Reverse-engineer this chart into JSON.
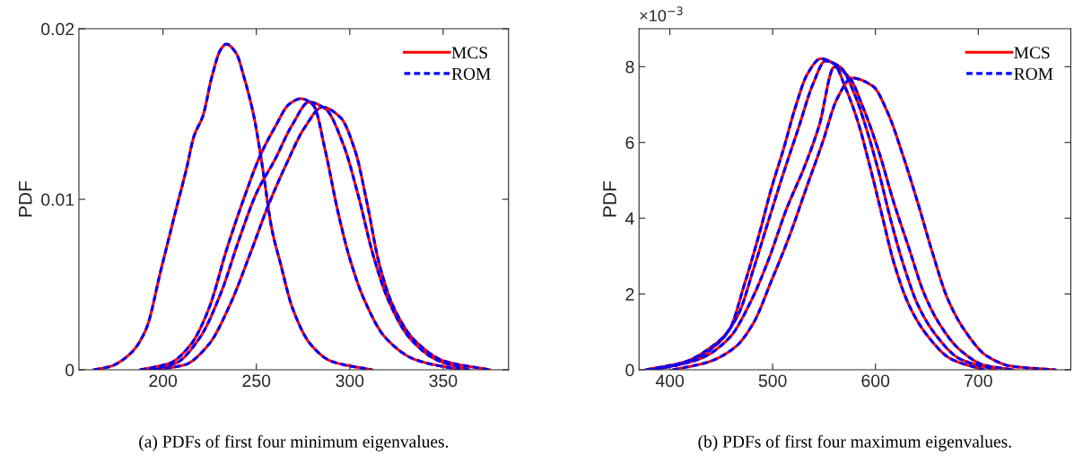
{
  "chart_data": [
    {
      "type": "line",
      "ylabel": "PDF",
      "xlim": [
        155,
        385
      ],
      "xticks": [
        200,
        250,
        300,
        350
      ],
      "ylim": [
        0,
        0.02
      ],
      "yticks": [
        0,
        0.01,
        0.02
      ],
      "legend": "top right",
      "grid": false,
      "annotations": [
        "(a) PDFs of first four minimum eigenvalues."
      ],
      "series": [
        {
          "name": "MCS",
          "color": "#ff0000",
          "line_style": "solid",
          "x": [
            163,
            171.8,
            183,
            191,
            199,
            207,
            212.6,
            216.6,
            221.4,
            226.2,
            231,
            233.9,
            239,
            243.8,
            248.6,
            253.4,
            258.2,
            263,
            269.4,
            279,
            290.2,
            311.8
          ],
          "values": [
            0,
            0.0002,
            0.001,
            0.0024,
            0.0059,
            0.0094,
            0.0118,
            0.0137,
            0.0149,
            0.0172,
            0.0188,
            0.0191,
            0.0186,
            0.017,
            0.0149,
            0.0118,
            0.0083,
            0.0062,
            0.0036,
            0.0015,
            0.0005,
            0
          ]
        },
        {
          "color": "#ff0000",
          "line_style": "solid",
          "x": [
            187.8,
            203.8,
            215,
            224.6,
            234.2,
            243.8,
            251.8,
            259.8,
            267.8,
            273.9,
            280.6,
            287,
            293.4,
            299.8,
            307.8,
            319,
            335,
            359
          ],
          "values": [
            0,
            0.0004,
            0.0015,
            0.0036,
            0.0071,
            0.0102,
            0.0125,
            0.0142,
            0.0156,
            0.0159,
            0.0155,
            0.0128,
            0.0094,
            0.0066,
            0.0041,
            0.0019,
            0.0006,
            0
          ]
        },
        {
          "color": "#ff0000",
          "line_style": "solid",
          "x": [
            192.6,
            207,
            219.8,
            231,
            240.6,
            250.2,
            259.8,
            269.4,
            278.2,
            287,
            296.6,
            304.6,
            312.6,
            320.6,
            331.8,
            346.2,
            363.8
          ],
          "values": [
            0,
            0.0004,
            0.0019,
            0.0045,
            0.0076,
            0.0104,
            0.0123,
            0.0144,
            0.0157,
            0.0153,
            0.0132,
            0.0102,
            0.0067,
            0.0041,
            0.0019,
            0.0006,
            0
          ]
        },
        {
          "color": "#ff0000",
          "line_style": "solid",
          "x": [
            195.8,
            211.8,
            224.6,
            235.8,
            247,
            256.6,
            266.2,
            275.8,
            285.4,
            295,
            303,
            309.4,
            315.8,
            323.8,
            335,
            351,
            375
          ],
          "values": [
            0,
            0.0003,
            0.0015,
            0.0038,
            0.0069,
            0.0097,
            0.0121,
            0.0142,
            0.0154,
            0.0148,
            0.0128,
            0.0097,
            0.0062,
            0.0036,
            0.0017,
            0.0005,
            0
          ]
        },
        {
          "name": "ROM",
          "color": "#0000ff",
          "line_style": "dashed",
          "x": [
            163,
            171.8,
            183,
            191,
            199,
            207,
            212.6,
            216.6,
            221.4,
            226.2,
            231,
            233.9,
            239,
            243.8,
            248.6,
            253.4,
            258.2,
            263,
            269.4,
            279,
            290.2,
            311.8
          ],
          "values": [
            0,
            0.0002,
            0.001,
            0.0024,
            0.0059,
            0.0094,
            0.0118,
            0.0137,
            0.0149,
            0.0172,
            0.0188,
            0.0191,
            0.0186,
            0.017,
            0.0149,
            0.0118,
            0.0083,
            0.0062,
            0.0036,
            0.0015,
            0.0005,
            0
          ]
        },
        {
          "color": "#0000ff",
          "line_style": "dashed",
          "x": [
            187.8,
            203.8,
            215,
            224.6,
            234.2,
            243.8,
            251.8,
            259.8,
            267.8,
            273.9,
            280.6,
            287,
            293.4,
            299.8,
            307.8,
            319,
            335,
            359
          ],
          "values": [
            0,
            0.0004,
            0.0015,
            0.0036,
            0.0071,
            0.0102,
            0.0125,
            0.0142,
            0.0156,
            0.0159,
            0.0155,
            0.0128,
            0.0094,
            0.0066,
            0.0041,
            0.0019,
            0.0006,
            0
          ]
        },
        {
          "color": "#0000ff",
          "line_style": "dashed",
          "x": [
            192.6,
            207,
            219.8,
            231,
            240.6,
            250.2,
            259.8,
            269.4,
            278.2,
            287,
            296.6,
            304.6,
            312.6,
            320.6,
            331.8,
            346.2,
            363.8
          ],
          "values": [
            0,
            0.0004,
            0.0019,
            0.0045,
            0.0076,
            0.0104,
            0.0123,
            0.0144,
            0.0157,
            0.0153,
            0.0132,
            0.0102,
            0.0067,
            0.0041,
            0.0019,
            0.0006,
            0
          ]
        },
        {
          "color": "#0000ff",
          "line_style": "dashed",
          "x": [
            195.8,
            211.8,
            224.6,
            235.8,
            247,
            256.6,
            266.2,
            275.8,
            285.4,
            295,
            303,
            309.4,
            315.8,
            323.8,
            335,
            351,
            375
          ],
          "values": [
            0,
            0.0003,
            0.0015,
            0.0038,
            0.0069,
            0.0097,
            0.0121,
            0.0142,
            0.0154,
            0.0148,
            0.0128,
            0.0097,
            0.0062,
            0.0036,
            0.0017,
            0.0005,
            0
          ]
        }
      ]
    },
    {
      "type": "line",
      "ylabel": "PDF",
      "xlim": [
        370,
        790
      ],
      "xticks": [
        400,
        500,
        600,
        700
      ],
      "ylim": [
        0,
        9
      ],
      "yticks": [
        0,
        2,
        4,
        6,
        8
      ],
      "legend": "top right",
      "grid": false,
      "annotations": [
        "(b) PDFs of first four maximum eigenvalues.",
        "×10$^{−3}$"
      ],
      "series": [
        {
          "name": "MCS",
          "color": "#ff0000",
          "line_style": "solid",
          "x": [
            376.7,
            414.5,
            440.7,
            458.1,
            472.7,
            487.2,
            498.8,
            510.5,
            522.1,
            533.7,
            546.8,
            559.9,
            571.5,
            583.1,
            594.8,
            606.4,
            618,
            632.6,
            650,
            673.3,
            705.2
          ],
          "values": [
            0,
            0.21,
            0.61,
            1.08,
            2.27,
            3.61,
            4.79,
            5.82,
            6.93,
            7.8,
            8.21,
            8.07,
            7.4,
            6.53,
            5.35,
            4.08,
            2.82,
            1.71,
            0.92,
            0.29,
            0
          ]
        },
        {
          "color": "#ff0000",
          "line_style": "solid",
          "x": [
            382.6,
            417.4,
            446.5,
            466.9,
            481.4,
            495.9,
            510.5,
            525,
            539.5,
            551.2,
            565.7,
            580.2,
            591.9,
            603.5,
            615.1,
            626.7,
            641.3,
            658.7,
            682,
            716.9
          ],
          "values": [
            0,
            0.21,
            0.69,
            1.48,
            2.66,
            3.93,
            5.19,
            6.37,
            7.56,
            8.15,
            7.99,
            7.24,
            6.3,
            5.19,
            3.93,
            2.82,
            1.71,
            0.92,
            0.29,
            0
          ]
        },
        {
          "color": "#ff0000",
          "line_style": "solid",
          "x": [
            385.5,
            429.1,
            458.1,
            478.5,
            495.9,
            513.4,
            530.8,
            545.3,
            559.9,
            574.4,
            589,
            603.5,
            618,
            632.6,
            647.1,
            661.6,
            682,
            705.2,
            734.3
          ],
          "values": [
            0,
            0.29,
            0.85,
            1.79,
            2.9,
            4.24,
            5.35,
            6.45,
            7.99,
            7.72,
            6.85,
            5.74,
            4.4,
            3.21,
            2.03,
            1.24,
            0.53,
            0.13,
            0
          ]
        },
        {
          "color": "#ff0000",
          "line_style": "solid",
          "x": [
            402.9,
            437.8,
            464,
            481.4,
            498.8,
            516.3,
            533.7,
            548.3,
            562.8,
            577.3,
            597.7,
            612.2,
            626.7,
            641.3,
            655.8,
            670.3,
            687.8,
            708.1,
            731.4,
            775
          ],
          "values": [
            0,
            0.21,
            0.61,
            1.24,
            2.35,
            3.53,
            4.87,
            5.98,
            7.16,
            7.7,
            7.48,
            6.77,
            5.66,
            4.4,
            3.06,
            1.87,
            1.0,
            0.37,
            0.1,
            0
          ]
        },
        {
          "name": "ROM",
          "color": "#0000ff",
          "line_style": "dashed",
          "x": [
            376.7,
            414.5,
            440.7,
            458.1,
            472.7,
            487.2,
            498.8,
            510.5,
            522.1,
            533.7,
            546.8,
            559.9,
            571.5,
            583.1,
            594.8,
            606.4,
            618,
            632.6,
            650,
            673.3,
            705.2
          ],
          "values": [
            0,
            0.21,
            0.61,
            1.08,
            2.27,
            3.61,
            4.79,
            5.82,
            6.93,
            7.8,
            8.21,
            8.07,
            7.4,
            6.53,
            5.35,
            4.08,
            2.82,
            1.71,
            0.92,
            0.29,
            0
          ]
        },
        {
          "color": "#0000ff",
          "line_style": "dashed",
          "x": [
            382.6,
            417.4,
            446.5,
            466.9,
            481.4,
            495.9,
            510.5,
            525,
            539.5,
            551.2,
            565.7,
            580.2,
            591.9,
            603.5,
            615.1,
            626.7,
            641.3,
            658.7,
            682,
            716.9
          ],
          "values": [
            0,
            0.21,
            0.69,
            1.48,
            2.66,
            3.93,
            5.19,
            6.37,
            7.56,
            8.15,
            7.99,
            7.24,
            6.3,
            5.19,
            3.93,
            2.82,
            1.71,
            0.92,
            0.29,
            0
          ]
        },
        {
          "color": "#0000ff",
          "line_style": "dashed",
          "x": [
            385.5,
            429.1,
            458.1,
            478.5,
            495.9,
            513.4,
            530.8,
            545.3,
            559.9,
            574.4,
            589,
            603.5,
            618,
            632.6,
            647.1,
            661.6,
            682,
            705.2,
            734.3
          ],
          "values": [
            0,
            0.29,
            0.85,
            1.79,
            2.9,
            4.24,
            5.35,
            6.45,
            7.99,
            7.72,
            6.85,
            5.74,
            4.4,
            3.21,
            2.03,
            1.24,
            0.53,
            0.13,
            0
          ]
        },
        {
          "color": "#0000ff",
          "line_style": "dashed",
          "x": [
            402.9,
            437.8,
            464,
            481.4,
            498.8,
            516.3,
            533.7,
            548.3,
            562.8,
            577.3,
            597.7,
            612.2,
            626.7,
            641.3,
            655.8,
            670.3,
            687.8,
            708.1,
            731.4,
            775
          ],
          "values": [
            0,
            0.21,
            0.61,
            1.24,
            2.35,
            3.53,
            4.87,
            5.98,
            7.16,
            7.7,
            7.48,
            6.77,
            5.66,
            4.4,
            3.06,
            1.87,
            1.0,
            0.37,
            0.1,
            0
          ]
        }
      ]
    }
  ]
}
